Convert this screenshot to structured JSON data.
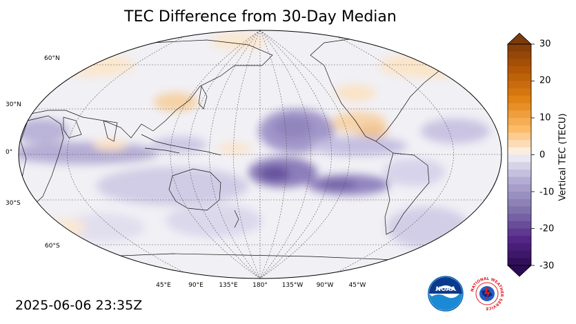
{
  "title": "TEC Difference from 30-Day Median",
  "timestamp": "2025-06-06 23:35Z",
  "lat_labels": [
    "60°N",
    "30°N",
    "0°",
    "30°S",
    "60°S"
  ],
  "lon_labels": [
    "45°E",
    "90°E",
    "135°E",
    "180°",
    "135°W",
    "90°W",
    "45°W"
  ],
  "colorbar": {
    "label": "Vertical TEC (TECU)",
    "min": -30,
    "max": 30,
    "ticks": [
      "30",
      "20",
      "10",
      "0",
      "-10",
      "-20",
      "-30"
    ]
  },
  "logos": {
    "noaa": {
      "text": "NOAA",
      "color": "#0a5fb4"
    },
    "nws": {
      "text": "NATIONAL WEATHER SERVICE",
      "color": "#e0191e"
    }
  },
  "colors": {
    "negative": "#5a3b8f",
    "positive": "#e8a050",
    "neutral": "#f2f1f5"
  }
}
